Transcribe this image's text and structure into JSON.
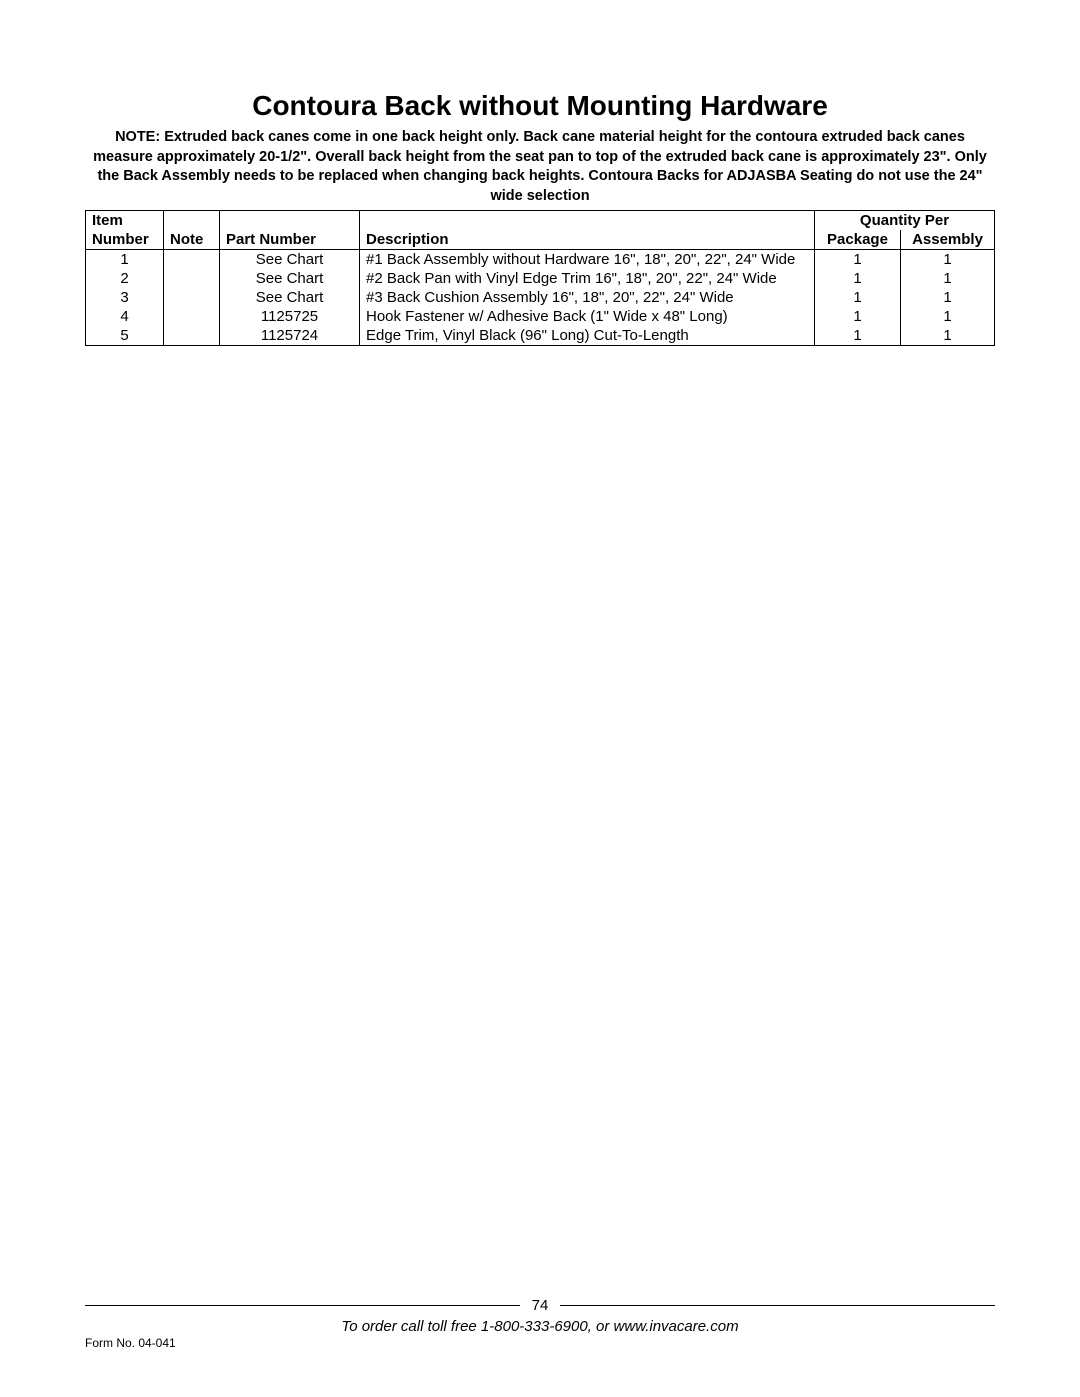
{
  "title": "Contoura Back without Mounting Hardware",
  "note": "NOTE: Extruded back canes come in one back height only. Back cane material height for the contoura extruded back canes measure approximately 20-1/2\". Overall back height from the seat pan to top of the extruded back cane is approximately 23\". Only the Back Assembly needs to be replaced when changing back heights. Contoura Backs for ADJASBA Seating do not use the 24\" wide selection",
  "headers": {
    "item": "Item",
    "number": "Number",
    "note": "Note",
    "part_number": "Part Number",
    "description": "Description",
    "quantity_per": "Quantity Per",
    "package": "Package",
    "assembly": "Assembly"
  },
  "rows": [
    {
      "item": "1",
      "note": "",
      "part": "See Chart",
      "desc": "#1 Back Assembly without Hardware 16\", 18\", 20\", 22\", 24\" Wide",
      "pkg": "1",
      "asm": "1"
    },
    {
      "item": "2",
      "note": "",
      "part": "See Chart",
      "desc": "#2 Back Pan with Vinyl Edge Trim 16\", 18\", 20\", 22\", 24\" Wide",
      "pkg": "1",
      "asm": "1"
    },
    {
      "item": "3",
      "note": "",
      "part": "See Chart",
      "desc": "#3 Back Cushion Assembly 16\", 18\", 20\", 22\", 24\" Wide",
      "pkg": "1",
      "asm": "1"
    },
    {
      "item": "4",
      "note": "",
      "part": "1125725",
      "desc": "Hook Fastener w/ Adhesive Back (1\" Wide x 48\" Long)",
      "pkg": "1",
      "asm": "1"
    },
    {
      "item": "5",
      "note": "",
      "part": "1125724",
      "desc": "Edge Trim, Vinyl Black (96\" Long) Cut-To-Length",
      "pkg": "1",
      "asm": "1"
    }
  ],
  "footer": {
    "page_number": "74",
    "form_no": "Form No. 04-041",
    "order_text": "To order call toll free 1-800-333-6900, or www.invacare.com"
  }
}
